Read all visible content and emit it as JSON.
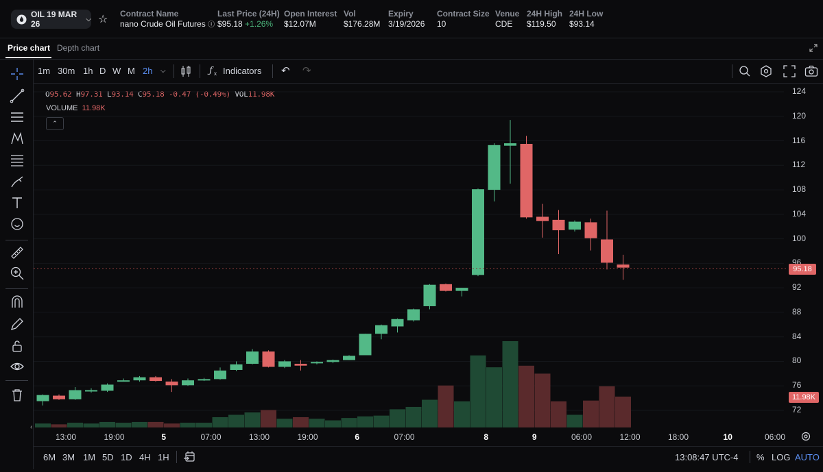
{
  "header": {
    "symbol": "OIL 19 MAR 26",
    "stats": [
      {
        "label": "Contract Name",
        "value": "nano Crude Oil Futures"
      },
      {
        "label": "Last Price (24H)",
        "value": "$95.18",
        "change": "+1.26%"
      },
      {
        "label": "Open Interest",
        "value": "$12.07M"
      },
      {
        "label": "Vol",
        "value": "$176.28M"
      },
      {
        "label": "Expiry",
        "value": "3/19/2026"
      },
      {
        "label": "Contract Size",
        "value": "10"
      },
      {
        "label": "Venue",
        "value": "CDE"
      },
      {
        "label": "24H High",
        "value": "$119.50"
      },
      {
        "label": "24H Low",
        "value": "$93.14"
      }
    ]
  },
  "tabs": {
    "price": "Price chart",
    "depth": "Depth chart"
  },
  "toolbar": {
    "intervals": [
      "1m",
      "30m",
      "1h",
      "D",
      "W",
      "M",
      "2h"
    ],
    "active_interval": "2h",
    "indicators_label": "Indicators"
  },
  "legend": {
    "o_label": "O",
    "o": "95.62",
    "h_label": "H",
    "h": "97.31",
    "l_label": "L",
    "l": "93.14",
    "c_label": "C",
    "c": "95.18",
    "chg": "-0.47 (-0.49%)",
    "vol_label": "VOL",
    "vol": "11.98K",
    "volume_label": "VOLUME",
    "volume": "11.98K"
  },
  "price_tag": "95.18",
  "volume_tag": "11.98K",
  "bottom": {
    "ranges": [
      "6M",
      "3M",
      "1M",
      "5D",
      "1D",
      "4H",
      "1H"
    ],
    "clock": "13:08:47 UTC-4",
    "percent": "%",
    "log": "LOG",
    "auto": "AUTO"
  },
  "colors": {
    "up": "#53b987",
    "down": "#e06666",
    "vol_up": "#1f4a34",
    "vol_down": "#5a2a2c",
    "bg": "#0b0b0d"
  },
  "chart_data": {
    "type": "candlestick",
    "y_ticks": [
      124,
      120,
      116,
      112,
      108,
      104,
      100,
      96,
      92,
      88,
      84,
      80,
      76,
      72
    ],
    "ylim": [
      70,
      125
    ],
    "x_ticks": [
      {
        "label": "13:00",
        "bold": false,
        "index": 1.5
      },
      {
        "label": "19:00",
        "bold": false,
        "index": 4.5
      },
      {
        "label": "5",
        "bold": true,
        "index": 7.5
      },
      {
        "label": "07:00",
        "bold": false,
        "index": 10.5
      },
      {
        "label": "13:00",
        "bold": false,
        "index": 13.5
      },
      {
        "label": "19:00",
        "bold": false,
        "index": 16.5
      },
      {
        "label": "6",
        "bold": true,
        "index": 19.5
      },
      {
        "label": "07:00",
        "bold": false,
        "index": 22.5
      },
      {
        "label": "8",
        "bold": true,
        "index": 27.5
      },
      {
        "label": "9",
        "bold": true,
        "index": 30.5
      },
      {
        "label": "06:00",
        "bold": false,
        "index": 33.5
      },
      {
        "label": "12:00",
        "bold": false,
        "index": 36.5
      },
      {
        "label": "18:00",
        "bold": false,
        "index": 39.5
      },
      {
        "label": "10",
        "bold": true,
        "index": 42.5
      },
      {
        "label": "06:00",
        "bold": false,
        "index": 45.5
      }
    ],
    "candles": [
      {
        "o": 73.5,
        "h": 74.6,
        "l": 72.8,
        "c": 74.5,
        "v": 0.5
      },
      {
        "o": 74.4,
        "h": 74.6,
        "l": 73.7,
        "c": 73.8,
        "v": 0.4
      },
      {
        "o": 73.8,
        "h": 75.8,
        "l": 73.7,
        "c": 75.3,
        "v": 0.6
      },
      {
        "o": 75.2,
        "h": 75.6,
        "l": 74.9,
        "c": 75.3,
        "v": 0.5
      },
      {
        "o": 75.2,
        "h": 76.4,
        "l": 75.0,
        "c": 76.2,
        "v": 0.7
      },
      {
        "o": 76.8,
        "h": 77.2,
        "l": 76.7,
        "c": 76.9,
        "v": 0.6
      },
      {
        "o": 76.9,
        "h": 77.6,
        "l": 76.7,
        "c": 77.4,
        "v": 0.7
      },
      {
        "o": 77.4,
        "h": 77.6,
        "l": 76.7,
        "c": 76.8,
        "v": 0.7
      },
      {
        "o": 76.7,
        "h": 77.1,
        "l": 75.0,
        "c": 76.1,
        "v": 0.5
      },
      {
        "o": 76.1,
        "h": 77.2,
        "l": 76.0,
        "c": 76.9,
        "v": 0.6
      },
      {
        "o": 76.9,
        "h": 77.3,
        "l": 76.8,
        "c": 77.1,
        "v": 0.6
      },
      {
        "o": 77.1,
        "h": 79.0,
        "l": 77.0,
        "c": 78.5,
        "v": 1.3
      },
      {
        "o": 78.6,
        "h": 80.0,
        "l": 78.4,
        "c": 79.5,
        "v": 1.6
      },
      {
        "o": 79.6,
        "h": 82.0,
        "l": 79.5,
        "c": 81.6,
        "v": 1.9
      },
      {
        "o": 81.6,
        "h": 81.8,
        "l": 79.0,
        "c": 79.1,
        "v": 2.2
      },
      {
        "o": 79.1,
        "h": 80.2,
        "l": 78.9,
        "c": 80.0,
        "v": 1.1
      },
      {
        "o": 79.6,
        "h": 80.2,
        "l": 78.5,
        "c": 79.3,
        "v": 1.3
      },
      {
        "o": 79.7,
        "h": 80.0,
        "l": 79.5,
        "c": 79.9,
        "v": 1.1
      },
      {
        "o": 79.9,
        "h": 80.3,
        "l": 79.7,
        "c": 80.2,
        "v": 0.9
      },
      {
        "o": 80.2,
        "h": 81.0,
        "l": 80.2,
        "c": 80.9,
        "v": 1.2
      },
      {
        "o": 81.0,
        "h": 84.5,
        "l": 81.0,
        "c": 84.5,
        "v": 1.4
      },
      {
        "o": 84.5,
        "h": 86.0,
        "l": 83.6,
        "c": 85.9,
        "v": 1.5
      },
      {
        "o": 85.7,
        "h": 87.0,
        "l": 84.7,
        "c": 86.9,
        "v": 2.3
      },
      {
        "o": 86.7,
        "h": 88.6,
        "l": 86.5,
        "c": 88.5,
        "v": 2.6
      },
      {
        "o": 89.0,
        "h": 92.6,
        "l": 88.5,
        "c": 92.5,
        "v": 3.5
      },
      {
        "o": 92.6,
        "h": 92.7,
        "l": 91.4,
        "c": 91.5,
        "v": 5.3
      },
      {
        "o": 91.5,
        "h": 92.0,
        "l": 90.6,
        "c": 92.0,
        "v": 3.3
      },
      {
        "o": 94.1,
        "h": 108.2,
        "l": 93.9,
        "c": 108.1,
        "v": 9.1
      },
      {
        "o": 108.0,
        "h": 115.6,
        "l": 106.1,
        "c": 115.3,
        "v": 7.6
      },
      {
        "o": 115.2,
        "h": 119.4,
        "l": 109.0,
        "c": 115.6,
        "v": 10.9
      },
      {
        "o": 115.5,
        "h": 116.8,
        "l": 103.3,
        "c": 103.5,
        "v": 7.8
      },
      {
        "o": 103.6,
        "h": 105.7,
        "l": 100.2,
        "c": 102.9,
        "v": 6.8
      },
      {
        "o": 103.1,
        "h": 104.7,
        "l": 97.5,
        "c": 101.4,
        "v": 3.3
      },
      {
        "o": 101.5,
        "h": 103.0,
        "l": 101.2,
        "c": 102.8,
        "v": 1.6
      },
      {
        "o": 102.7,
        "h": 103.3,
        "l": 98.1,
        "c": 100.1,
        "v": 3.4
      },
      {
        "o": 99.9,
        "h": 104.6,
        "l": 95.0,
        "c": 96.1,
        "v": 5.2
      },
      {
        "o": 95.8,
        "h": 97.4,
        "l": 93.3,
        "c": 95.3,
        "v": 3.9
      }
    ],
    "last_price": 95.18
  }
}
